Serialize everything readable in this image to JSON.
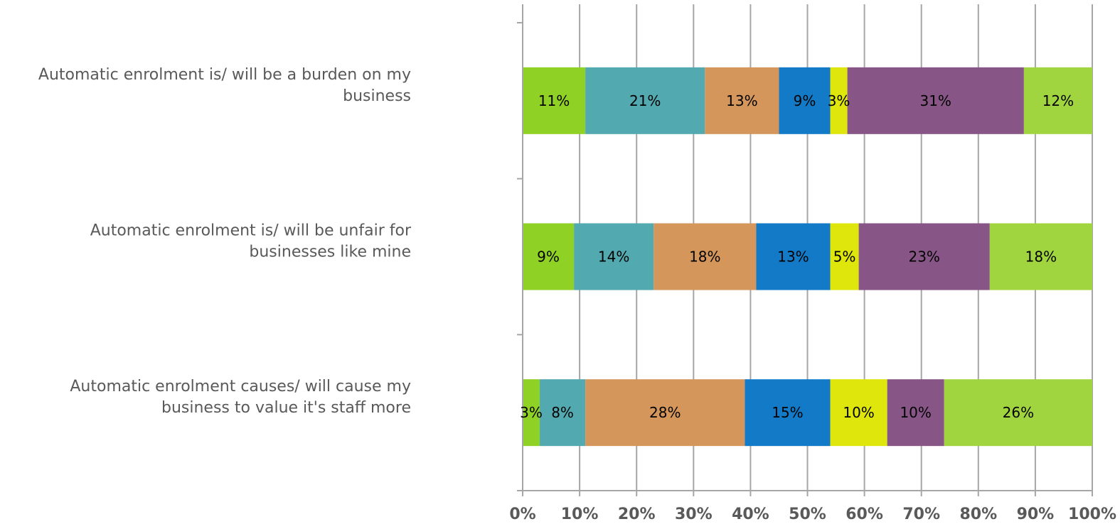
{
  "chart_data": {
    "type": "bar",
    "orientation": "horizontal",
    "stacked": "100%",
    "categories": [
      [
        "Automatic enrolment is/ will be a burden on my",
        "business"
      ],
      [
        "Automatic enrolment is/ will be unfair for",
        "businesses like mine"
      ],
      [
        "Automatic enrolment causes/ will cause my",
        "business to value it's staff more"
      ]
    ],
    "series": [
      {
        "values": [
          11,
          9,
          3
        ],
        "labels": [
          "11%",
          "9%",
          "3%"
        ],
        "color": "#8fd124"
      },
      {
        "values": [
          21,
          14,
          8
        ],
        "labels": [
          "21%",
          "14%",
          "8%"
        ],
        "color": "#52aab0"
      },
      {
        "values": [
          13,
          18,
          28
        ],
        "labels": [
          "13%",
          "18%",
          "28%"
        ],
        "color": "#d4965a"
      },
      {
        "values": [
          9,
          13,
          15
        ],
        "labels": [
          "9%",
          "13%",
          "15%"
        ],
        "color": "#137ac7"
      },
      {
        "values": [
          3,
          5,
          10
        ],
        "labels": [
          "3%",
          "5%",
          "10%"
        ],
        "color": "#dfe60b"
      },
      {
        "values": [
          31,
          23,
          10
        ],
        "labels": [
          "31%",
          "23%",
          "10%"
        ],
        "color": "#875686"
      },
      {
        "values": [
          12,
          18,
          26
        ],
        "labels": [
          "12%",
          "18%",
          "26%"
        ],
        "color": "#a1d540"
      }
    ],
    "xlim": [
      0,
      100
    ],
    "xticks": [
      "0%",
      "10%",
      "20%",
      "30%",
      "40%",
      "50%",
      "60%",
      "70%",
      "80%",
      "90%",
      "100%"
    ],
    "grid": "vertical",
    "legend": "none"
  }
}
